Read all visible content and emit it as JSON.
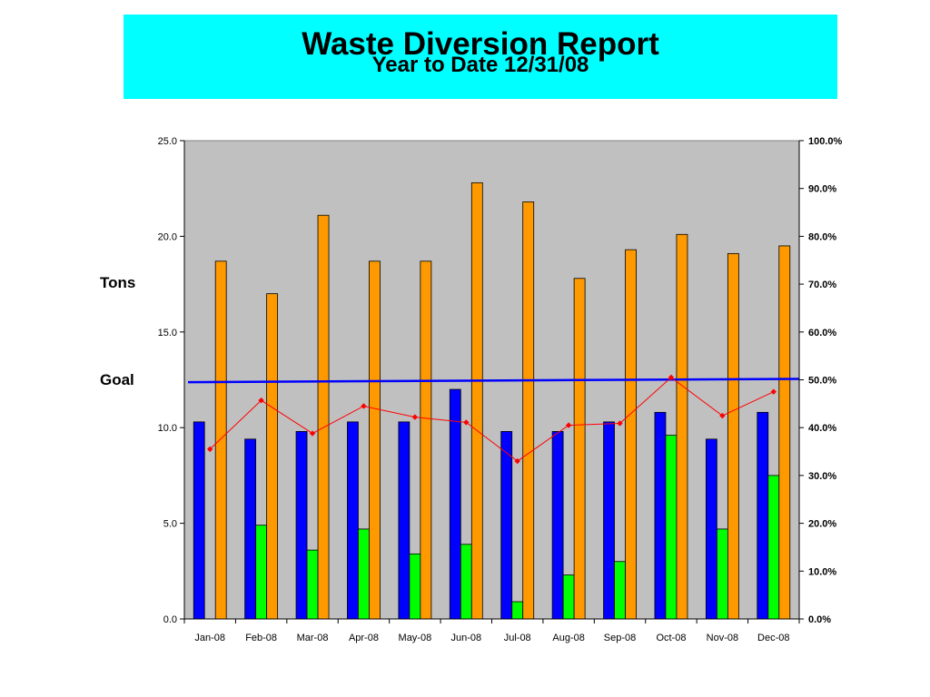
{
  "title": "Waste Diversion Report",
  "subtitle": "Year to Date 12/31/08",
  "chart_data": {
    "type": "bar",
    "categories": [
      "Jan-08",
      "Feb-08",
      "Mar-08",
      "Apr-08",
      "May-08",
      "Jun-08",
      "Jul-08",
      "Aug-08",
      "Sep-08",
      "Oct-08",
      "Nov-08",
      "Dec-08"
    ],
    "ylabel": "Tons",
    "goal_label": "Goal",
    "ylim": [
      0,
      25
    ],
    "y_ticks": [
      "0.0",
      "5.0",
      "10.0",
      "15.0",
      "20.0",
      "25.0"
    ],
    "y2lim": [
      0,
      1
    ],
    "y2_ticks": [
      "0.0%",
      "10.0%",
      "20.0%",
      "30.0%",
      "40.0%",
      "50.0%",
      "60.0%",
      "70.0%",
      "80.0%",
      "90.0%",
      "100.0%"
    ],
    "plot_background": "#c0c0c0",
    "grid": false,
    "series": [
      {
        "color": "#0000ff",
        "kind": "bar",
        "axis": "left",
        "values": [
          10.3,
          9.4,
          9.8,
          10.3,
          10.3,
          12.0,
          9.8,
          9.8,
          10.3,
          10.8,
          9.4,
          10.8
        ]
      },
      {
        "color": "#00ff00",
        "kind": "bar",
        "axis": "left",
        "values": [
          0,
          4.9,
          3.6,
          4.7,
          3.4,
          3.9,
          0.9,
          2.3,
          3.0,
          9.6,
          4.7,
          7.5
        ]
      },
      {
        "color": "#ff9900",
        "kind": "bar",
        "axis": "left",
        "values": [
          18.7,
          17.0,
          21.1,
          18.7,
          18.7,
          22.8,
          21.8,
          17.8,
          19.3,
          20.1,
          19.1,
          19.5
        ]
      },
      {
        "color": "#ff0000",
        "kind": "line",
        "axis": "right",
        "values": [
          0.355,
          0.457,
          0.388,
          0.445,
          0.422,
          0.411,
          0.33,
          0.405,
          0.409,
          0.505,
          0.425,
          0.475
        ]
      }
    ],
    "goal_line": {
      "color": "#0000ff",
      "start": 0.495,
      "end": 0.502,
      "axis": "right"
    }
  }
}
